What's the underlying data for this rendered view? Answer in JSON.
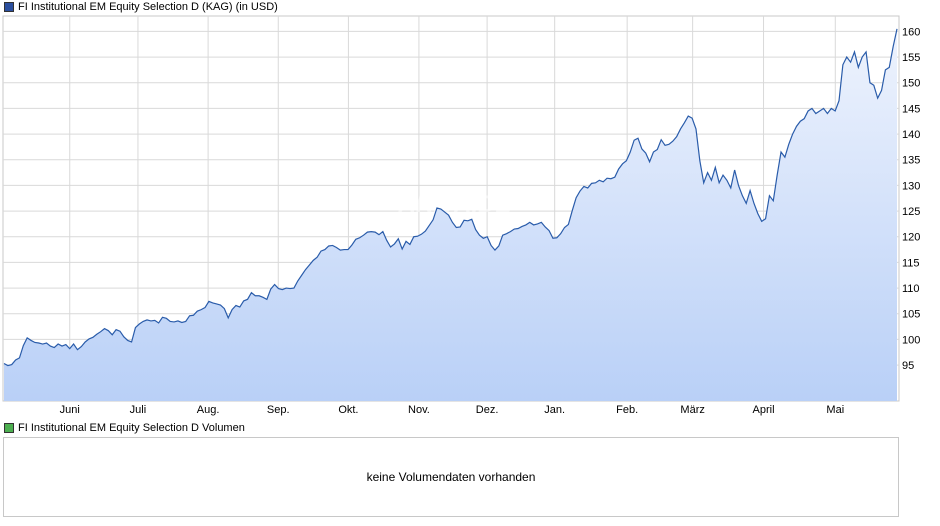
{
  "chart_data": {
    "type": "area",
    "title": "FI Institutional EM Equity Selection D (KAG) (in USD)",
    "x_ticks": [
      "Juni",
      "Juli",
      "Aug.",
      "Sep.",
      "Okt.",
      "Nov.",
      "Dez.",
      "Jan.",
      "Feb.",
      "März",
      "April",
      "Mai"
    ],
    "ylim": [
      88,
      163
    ],
    "y_ticks": [
      95,
      100,
      105,
      110,
      115,
      120,
      125,
      130,
      135,
      140,
      145,
      150,
      155,
      160
    ],
    "grid": true,
    "watermark": "ARIVA.DE",
    "colors": {
      "line": "#2a5caa",
      "fill_top": "#eef3fd",
      "fill_bottom": "#b9d0f7",
      "grid": "#d9d9d9",
      "swatch": "#2b4f9e"
    },
    "series": [
      {
        "values": [
          95.3,
          94.9,
          95.1,
          96,
          96.4,
          98.8,
          100.3,
          99.8,
          99.4,
          99.3,
          99.1,
          99.3,
          98.7,
          98.4,
          99.1,
          98.7,
          99,
          98.2,
          99.1,
          98,
          98.6,
          99.5,
          100.1,
          100.4,
          101,
          101.5,
          102.1,
          101.7,
          100.9,
          101.9,
          101.6,
          100.5,
          99.8,
          99.5,
          102.3,
          103,
          103.5,
          103.8,
          103.6,
          103.7,
          103.2,
          104.3,
          104.1,
          103.5,
          103.4,
          103.6,
          103.3,
          103.5,
          104.6,
          104.7,
          105.5,
          105.8,
          106.2,
          107.4,
          107.1,
          106.9,
          106.7,
          106,
          104.2,
          105.8,
          106.6,
          106.3,
          107.5,
          107.8,
          109.1,
          108.5,
          108.5,
          108.2,
          107.8,
          109.8,
          110.7,
          109.9,
          109.7,
          110,
          109.9,
          110,
          111.4,
          112.5,
          113.6,
          114.5,
          115.4,
          116,
          117.2,
          117.5,
          118.2,
          118.3,
          117.9,
          117.4,
          117.5,
          117.5,
          118.4,
          119.5,
          119.8,
          120.3,
          120.9,
          121,
          120.9,
          120.4,
          121,
          119.3,
          118,
          118.6,
          119.6,
          117.6,
          119.1,
          118.5,
          120,
          120.1,
          120.5,
          121.1,
          122.2,
          123.3,
          125.6,
          125.4,
          124.8,
          124.2,
          122.8,
          121.8,
          121.9,
          123.2,
          123.1,
          123.4,
          121.4,
          120.3,
          119.7,
          120,
          118.3,
          117.4,
          118.2,
          120.3,
          120.6,
          121,
          121.5,
          121.6,
          122,
          122.3,
          122.8,
          122.3,
          122.5,
          122.8,
          121.9,
          121.2,
          119.7,
          119.8,
          120.6,
          121.8,
          122.4,
          125.1,
          127.6,
          128.9,
          129.8,
          129.5,
          130.4,
          130.5,
          131,
          130.7,
          131.4,
          131.3,
          131.6,
          133.2,
          134.2,
          134.8,
          136.5,
          138.8,
          139.2,
          137.1,
          136.3,
          134.6,
          136.5,
          137,
          138.9,
          137.8,
          138,
          138.6,
          139.5,
          141,
          142.2,
          143.5,
          143.1,
          141,
          134.8,
          130.5,
          132.5,
          131,
          133.5,
          130.5,
          132,
          131,
          129.5,
          133,
          130,
          128,
          126.5,
          129,
          126.5,
          124.5,
          123,
          123.5,
          128,
          127,
          132,
          136.5,
          135.5,
          138,
          140,
          141.5,
          142.5,
          143,
          144.5,
          145,
          144,
          144.5,
          145,
          144,
          145,
          144.5,
          146.5,
          153.5,
          155,
          154,
          156,
          153,
          155,
          156,
          150,
          149.5,
          147,
          148.5,
          152.5,
          153,
          157,
          160.5
        ]
      }
    ],
    "volume_title": "FI Institutional EM Equity Selection D Volumen",
    "volume_message": "keine Volumendaten vorhanden",
    "volume_swatch": "#4caf50"
  }
}
